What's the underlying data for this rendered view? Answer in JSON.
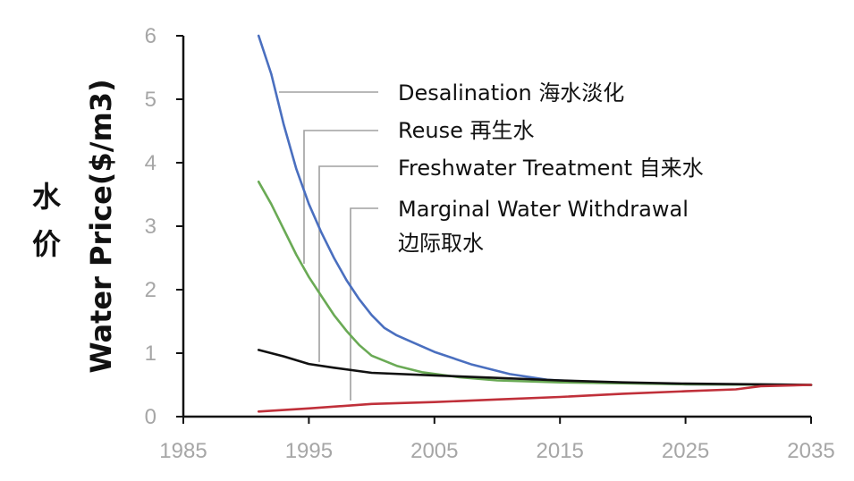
{
  "chart_data": {
    "type": "line",
    "xlabel": "",
    "ylabel": "Water Price($/m3)",
    "ylabel_cn_1": "水",
    "ylabel_cn_2": "价",
    "xlim": [
      1985,
      2035
    ],
    "ylim": [
      0,
      6
    ],
    "x_ticks": [
      "1985",
      "1995",
      "2005",
      "2015",
      "2025",
      "2035"
    ],
    "y_ticks": [
      "0",
      "1",
      "2",
      "3",
      "4",
      "5",
      "6"
    ],
    "grid": false,
    "annotations": [
      "Desalination 海水淡化",
      "Reuse 再生水",
      "Freshwater Treatment 自来水",
      "Marginal Water Withdrawal",
      "边际取水"
    ],
    "series": [
      {
        "name": "Desalination 海水淡化",
        "color": "#4a6fbf",
        "points": [
          [
            1991,
            6.0
          ],
          [
            1992,
            5.4
          ],
          [
            1993,
            4.6
          ],
          [
            1994,
            3.9
          ],
          [
            1995,
            3.35
          ],
          [
            1996,
            2.9
          ],
          [
            1997,
            2.5
          ],
          [
            1998,
            2.15
          ],
          [
            1999,
            1.85
          ],
          [
            2000,
            1.6
          ],
          [
            2001,
            1.4
          ],
          [
            2002,
            1.28
          ],
          [
            2005,
            1.02
          ],
          [
            2008,
            0.82
          ],
          [
            2011,
            0.67
          ],
          [
            2014,
            0.58
          ],
          [
            2018,
            0.54
          ],
          [
            2025,
            0.51
          ],
          [
            2035,
            0.5
          ]
        ]
      },
      {
        "name": "Reuse 再生水",
        "color": "#6aaa55",
        "points": [
          [
            1991,
            3.7
          ],
          [
            1992,
            3.35
          ],
          [
            1993,
            2.95
          ],
          [
            1994,
            2.55
          ],
          [
            1995,
            2.2
          ],
          [
            1996,
            1.9
          ],
          [
            1997,
            1.6
          ],
          [
            1998,
            1.35
          ],
          [
            1999,
            1.13
          ],
          [
            2000,
            0.96
          ],
          [
            2002,
            0.8
          ],
          [
            2004,
            0.7
          ],
          [
            2007,
            0.62
          ],
          [
            2010,
            0.57
          ],
          [
            2015,
            0.54
          ],
          [
            2025,
            0.51
          ],
          [
            2035,
            0.5
          ]
        ]
      },
      {
        "name": "Freshwater Treatment 自来水",
        "color": "#111111",
        "points": [
          [
            1991,
            1.05
          ],
          [
            1993,
            0.95
          ],
          [
            1995,
            0.83
          ],
          [
            1997,
            0.77
          ],
          [
            2000,
            0.69
          ],
          [
            2005,
            0.65
          ],
          [
            2010,
            0.61
          ],
          [
            2015,
            0.57
          ],
          [
            2020,
            0.54
          ],
          [
            2025,
            0.52
          ],
          [
            2035,
            0.5
          ]
        ]
      },
      {
        "name": "Marginal Water Withdrawal 边际取水",
        "color": "#c0303a",
        "points": [
          [
            1991,
            0.08
          ],
          [
            1995,
            0.13
          ],
          [
            2000,
            0.2
          ],
          [
            2005,
            0.23
          ],
          [
            2010,
            0.27
          ],
          [
            2015,
            0.31
          ],
          [
            2020,
            0.36
          ],
          [
            2025,
            0.4
          ],
          [
            2029,
            0.43
          ],
          [
            2031,
            0.48
          ],
          [
            2035,
            0.5
          ]
        ]
      }
    ]
  }
}
